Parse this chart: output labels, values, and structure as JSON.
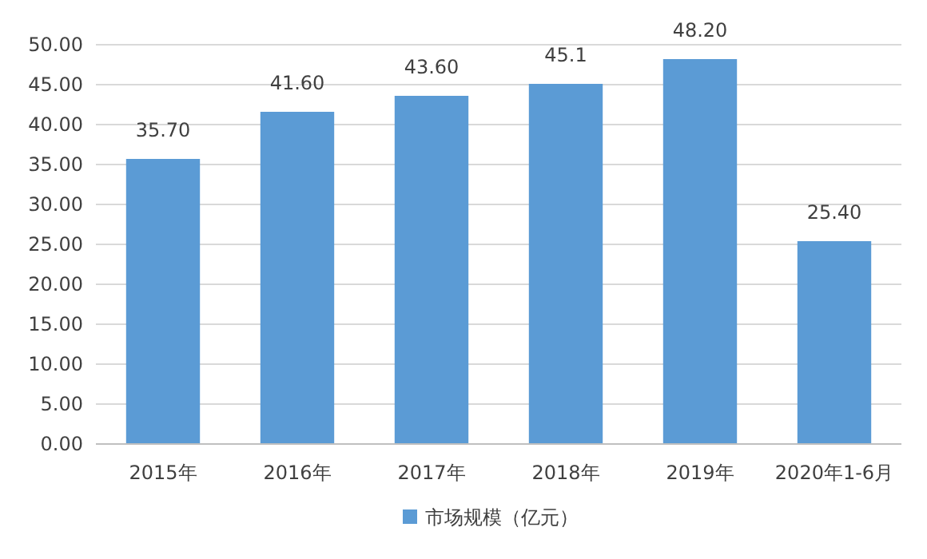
{
  "chart_data": {
    "type": "bar",
    "categories": [
      "2015年",
      "2016年",
      "2017年",
      "2018年",
      "2019年",
      "2020年1-6月"
    ],
    "series": [
      {
        "name": "市场规模（亿元）",
        "color": "#5b9bd5",
        "values": [
          35.7,
          41.6,
          43.6,
          45.1,
          48.2,
          25.4
        ],
        "value_labels": [
          "35.70",
          "41.60",
          "43.60",
          "45.1",
          "48.20",
          "25.40"
        ]
      }
    ],
    "ylim": [
      0,
      50
    ],
    "yticks": [
      {
        "value": 0,
        "label": "0.00"
      },
      {
        "value": 5,
        "label": "5.00"
      },
      {
        "value": 10,
        "label": "10.00"
      },
      {
        "value": 15,
        "label": "15.00"
      },
      {
        "value": 20,
        "label": "20.00"
      },
      {
        "value": 25,
        "label": "25.00"
      },
      {
        "value": 30,
        "label": "30.00"
      },
      {
        "value": 35,
        "label": "35.00"
      },
      {
        "value": 40,
        "label": "40.00"
      },
      {
        "value": 45,
        "label": "45.00"
      },
      {
        "value": 50,
        "label": "50.00"
      }
    ],
    "grid": "y",
    "legend": "bottom"
  }
}
